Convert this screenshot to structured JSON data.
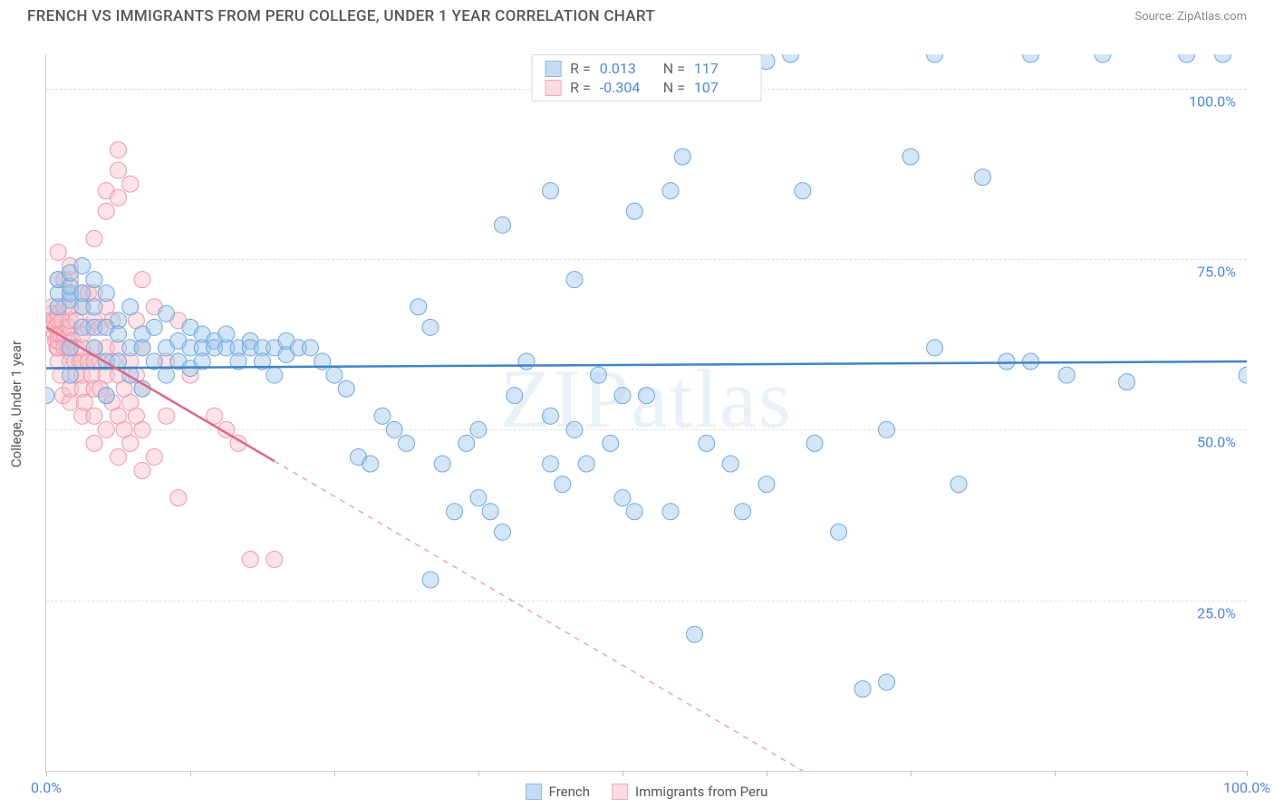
{
  "header": {
    "title": "FRENCH VS IMMIGRANTS FROM PERU COLLEGE, UNDER 1 YEAR CORRELATION CHART",
    "source": "Source: ZipAtlas.com"
  },
  "watermark": "ZIPatlas",
  "chart": {
    "type": "scatter",
    "ylabel": "College, Under 1 year",
    "xlim": [
      0,
      100
    ],
    "ylim": [
      0,
      105
    ],
    "xtick_positions": [
      0,
      12,
      24,
      36,
      48,
      60,
      72,
      84,
      100
    ],
    "xtick_labels": {
      "0": "0.0%",
      "100": "100.0%"
    },
    "ytick_positions": [
      25,
      50,
      75,
      100
    ],
    "ytick_labels": {
      "25": "25.0%",
      "50": "50.0%",
      "75": "75.0%",
      "100": "100.0%"
    },
    "grid_color": "#e0e0e0",
    "background_color": "#ffffff",
    "label_color": "#4a86e8",
    "axis_color": "#d0d0d0",
    "marker_radius": 9,
    "marker_opacity": 0.45,
    "line_width": 2.5,
    "series": [
      {
        "name": "French",
        "color": "#9ec5ec",
        "stroke": "#6fa8dc",
        "line_color": "#3d85c6",
        "swatch_fill": "#c5dbf3",
        "swatch_border": "#8fb7e3",
        "R": "0.013",
        "N": "117",
        "trend": {
          "x1": 0,
          "y1": 59,
          "x2": 100,
          "y2": 60,
          "dashed_after": null
        },
        "points": [
          [
            0,
            55
          ],
          [
            1,
            68
          ],
          [
            1,
            70
          ],
          [
            1,
            72
          ],
          [
            2,
            62
          ],
          [
            2,
            69
          ],
          [
            2,
            70
          ],
          [
            2,
            71
          ],
          [
            2,
            73
          ],
          [
            2,
            58
          ],
          [
            3,
            74
          ],
          [
            3,
            65
          ],
          [
            3,
            68
          ],
          [
            3,
            70
          ],
          [
            4,
            62
          ],
          [
            4,
            65
          ],
          [
            4,
            68
          ],
          [
            4,
            72
          ],
          [
            5,
            55
          ],
          [
            5,
            60
          ],
          [
            5,
            65
          ],
          [
            5,
            70
          ],
          [
            6,
            66
          ],
          [
            6,
            64
          ],
          [
            6,
            60
          ],
          [
            7,
            58
          ],
          [
            7,
            68
          ],
          [
            7,
            62
          ],
          [
            8,
            64
          ],
          [
            8,
            56
          ],
          [
            8,
            62
          ],
          [
            9,
            65
          ],
          [
            9,
            60
          ],
          [
            10,
            67
          ],
          [
            10,
            62
          ],
          [
            10,
            58
          ],
          [
            11,
            63
          ],
          [
            11,
            60
          ],
          [
            12,
            62
          ],
          [
            12,
            59
          ],
          [
            12,
            65
          ],
          [
            13,
            62
          ],
          [
            13,
            64
          ],
          [
            13,
            60
          ],
          [
            14,
            63
          ],
          [
            14,
            62
          ],
          [
            15,
            62
          ],
          [
            15,
            64
          ],
          [
            16,
            62
          ],
          [
            16,
            60
          ],
          [
            17,
            63
          ],
          [
            17,
            62
          ],
          [
            18,
            62
          ],
          [
            18,
            60
          ],
          [
            19,
            62
          ],
          [
            19,
            58
          ],
          [
            20,
            61
          ],
          [
            20,
            63
          ],
          [
            21,
            62
          ],
          [
            22,
            62
          ],
          [
            23,
            60
          ],
          [
            24,
            58
          ],
          [
            25,
            56
          ],
          [
            26,
            46
          ],
          [
            27,
            45
          ],
          [
            28,
            52
          ],
          [
            29,
            50
          ],
          [
            30,
            48
          ],
          [
            31,
            68
          ],
          [
            32,
            65
          ],
          [
            32,
            28
          ],
          [
            33,
            45
          ],
          [
            34,
            38
          ],
          [
            35,
            48
          ],
          [
            36,
            50
          ],
          [
            36,
            40
          ],
          [
            37,
            38
          ],
          [
            38,
            35
          ],
          [
            38,
            80
          ],
          [
            39,
            55
          ],
          [
            40,
            60
          ],
          [
            42,
            52
          ],
          [
            42,
            45
          ],
          [
            42,
            85
          ],
          [
            43,
            42
          ],
          [
            44,
            50
          ],
          [
            44,
            72
          ],
          [
            45,
            45
          ],
          [
            46,
            58
          ],
          [
            47,
            48
          ],
          [
            48,
            55
          ],
          [
            48,
            40
          ],
          [
            49,
            38
          ],
          [
            49,
            82
          ],
          [
            50,
            55
          ],
          [
            52,
            38
          ],
          [
            52,
            85
          ],
          [
            53,
            90
          ],
          [
            54,
            20
          ],
          [
            55,
            48
          ],
          [
            57,
            45
          ],
          [
            58,
            38
          ],
          [
            60,
            42
          ],
          [
            60,
            104
          ],
          [
            62,
            105
          ],
          [
            63,
            85
          ],
          [
            64,
            48
          ],
          [
            66,
            35
          ],
          [
            68,
            12
          ],
          [
            70,
            50
          ],
          [
            70,
            13
          ],
          [
            72,
            90
          ],
          [
            74,
            62
          ],
          [
            74,
            105
          ],
          [
            76,
            42
          ],
          [
            78,
            87
          ],
          [
            80,
            60
          ],
          [
            82,
            60
          ],
          [
            82,
            105
          ],
          [
            85,
            58
          ],
          [
            88,
            105
          ],
          [
            90,
            57
          ],
          [
            95,
            105
          ],
          [
            98,
            105
          ],
          [
            100,
            58
          ]
        ]
      },
      {
        "name": "Immigrants from Peru",
        "color": "#f7c0cc",
        "stroke": "#f096aa",
        "line_color": "#e06688",
        "swatch_fill": "#fbdce3",
        "swatch_border": "#f2aabb",
        "R": "-0.304",
        "N": "107",
        "trend": {
          "x1": 0,
          "y1": 65,
          "x2": 63,
          "y2": 0,
          "dashed_after": 19
        },
        "points": [
          [
            0.5,
            66
          ],
          [
            0.5,
            67
          ],
          [
            0.5,
            68
          ],
          [
            0.7,
            64
          ],
          [
            0.7,
            66
          ],
          [
            0.8,
            63
          ],
          [
            0.8,
            65
          ],
          [
            0.9,
            62
          ],
          [
            1,
            60
          ],
          [
            1,
            62
          ],
          [
            1,
            63
          ],
          [
            1,
            64
          ],
          [
            1,
            66
          ],
          [
            1,
            67
          ],
          [
            1,
            72
          ],
          [
            1,
            76
          ],
          [
            1.2,
            58
          ],
          [
            1.2,
            64
          ],
          [
            1.3,
            66
          ],
          [
            1.4,
            55
          ],
          [
            1.5,
            62
          ],
          [
            1.5,
            64
          ],
          [
            1.5,
            68
          ],
          [
            1.5,
            72
          ],
          [
            1.8,
            62
          ],
          [
            1.8,
            65
          ],
          [
            2,
            54
          ],
          [
            2,
            56
          ],
          [
            2,
            60
          ],
          [
            2,
            62
          ],
          [
            2,
            64
          ],
          [
            2,
            65
          ],
          [
            2,
            66
          ],
          [
            2,
            68
          ],
          [
            2,
            70
          ],
          [
            2,
            72
          ],
          [
            2,
            74
          ],
          [
            2.2,
            63
          ],
          [
            2.4,
            60
          ],
          [
            2.5,
            58
          ],
          [
            2.5,
            62
          ],
          [
            2.5,
            66
          ],
          [
            2.8,
            60
          ],
          [
            3,
            52
          ],
          [
            3,
            56
          ],
          [
            3,
            58
          ],
          [
            3,
            60
          ],
          [
            3,
            62
          ],
          [
            3,
            64
          ],
          [
            3,
            68
          ],
          [
            3,
            70
          ],
          [
            3.2,
            54
          ],
          [
            3.5,
            60
          ],
          [
            3.5,
            65
          ],
          [
            3.5,
            70
          ],
          [
            3.8,
            58
          ],
          [
            4,
            48
          ],
          [
            4,
            52
          ],
          [
            4,
            56
          ],
          [
            4,
            60
          ],
          [
            4,
            62
          ],
          [
            4,
            66
          ],
          [
            4,
            70
          ],
          [
            4,
            78
          ],
          [
            4.5,
            56
          ],
          [
            4.5,
            60
          ],
          [
            4.5,
            65
          ],
          [
            5,
            50
          ],
          [
            5,
            55
          ],
          [
            5,
            58
          ],
          [
            5,
            62
          ],
          [
            5,
            68
          ],
          [
            5,
            82
          ],
          [
            5,
            85
          ],
          [
            5.5,
            54
          ],
          [
            5.5,
            60
          ],
          [
            5.5,
            66
          ],
          [
            6,
            46
          ],
          [
            6,
            52
          ],
          [
            6,
            58
          ],
          [
            6,
            62
          ],
          [
            6,
            84
          ],
          [
            6,
            88
          ],
          [
            6,
            91
          ],
          [
            6.5,
            50
          ],
          [
            6.5,
            56
          ],
          [
            7,
            48
          ],
          [
            7,
            54
          ],
          [
            7,
            60
          ],
          [
            7,
            86
          ],
          [
            7.5,
            52
          ],
          [
            7.5,
            58
          ],
          [
            7.5,
            66
          ],
          [
            8,
            44
          ],
          [
            8,
            50
          ],
          [
            8,
            56
          ],
          [
            8,
            62
          ],
          [
            8,
            72
          ],
          [
            9,
            46
          ],
          [
            9,
            68
          ],
          [
            10,
            52
          ],
          [
            10,
            60
          ],
          [
            11,
            40
          ],
          [
            11,
            66
          ],
          [
            12,
            58
          ],
          [
            14,
            52
          ],
          [
            15,
            50
          ],
          [
            16,
            48
          ],
          [
            17,
            31
          ],
          [
            19,
            31
          ]
        ]
      }
    ],
    "legend": {
      "series1_label": "French",
      "series2_label": "Immigrants from Peru"
    }
  }
}
